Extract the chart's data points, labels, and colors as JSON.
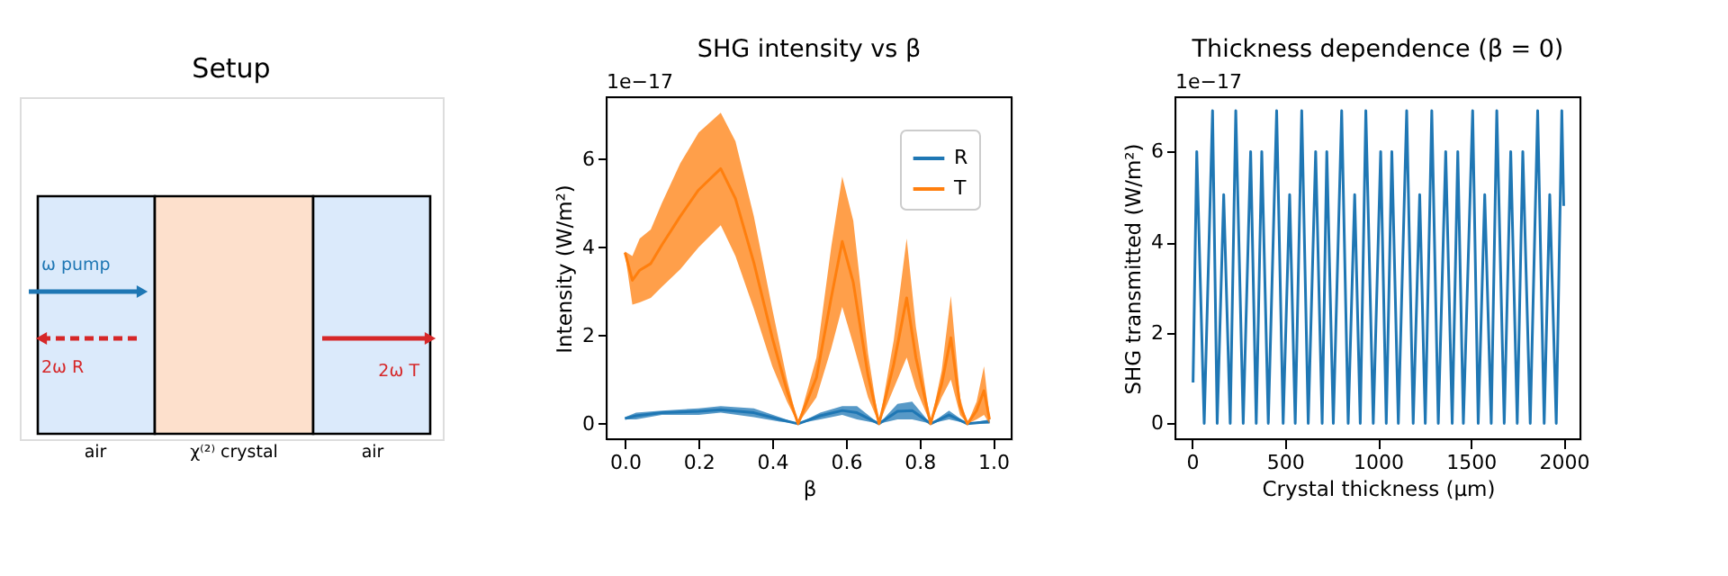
{
  "chart_data": [
    {
      "type": "other",
      "title": "Setup",
      "annotations": [
        "ω pump",
        "2ω R",
        "2ω T",
        "air",
        "χ⁽²⁾ crystal",
        "air"
      ]
    },
    {
      "type": "line",
      "title": "SHG intensity vs β",
      "xlabel": "β",
      "ylabel": "Intensity (W/m²)",
      "annotations": [
        "1e−17"
      ],
      "legend": "top right",
      "grid": false,
      "marker": "none",
      "line_style": "solid",
      "xlim": [
        -0.05,
        1.05
      ],
      "ylim": [
        -0.35,
        7.4
      ],
      "xticks": [
        {
          "value": 0,
          "label": "0.0"
        },
        {
          "value": 0.2,
          "label": "0.2"
        },
        {
          "value": 0.4,
          "label": "0.4"
        },
        {
          "value": 0.6,
          "label": "0.6"
        },
        {
          "value": 0.8,
          "label": "0.8"
        },
        {
          "value": 1,
          "label": "1.0"
        }
      ],
      "yticks": [
        0,
        2,
        4,
        6
      ],
      "series": [
        {
          "name": "R",
          "color": "#1f77b4",
          "x": [
            0,
            0.03,
            0.1,
            0.2,
            0.26,
            0.35,
            0.42,
            0.47,
            0.53,
            0.59,
            0.63,
            0.69,
            0.74,
            0.78,
            0.83,
            0.88,
            0.93,
            0.99
          ],
          "values": [
            0.12,
            0.18,
            0.25,
            0.28,
            0.32,
            0.25,
            0.1,
            0,
            0.18,
            0.3,
            0.25,
            0,
            0.28,
            0.3,
            0,
            0.2,
            0,
            0.05
          ],
          "lower": [
            0.1,
            0.1,
            0.2,
            0.2,
            0.25,
            0.15,
            0.05,
            0,
            0.1,
            0.2,
            0.1,
            0,
            0.1,
            0.1,
            0,
            0.1,
            0,
            0
          ],
          "upper": [
            0.15,
            0.25,
            0.3,
            0.35,
            0.4,
            0.35,
            0.15,
            0,
            0.25,
            0.4,
            0.4,
            0,
            0.45,
            0.5,
            0,
            0.3,
            0,
            0.1
          ]
        },
        {
          "name": "T",
          "color": "#ff7f0e",
          "x": [
            0,
            0.02,
            0.04,
            0.07,
            0.1,
            0.15,
            0.2,
            0.26,
            0.3,
            0.35,
            0.4,
            0.44,
            0.47,
            0.52,
            0.56,
            0.59,
            0.62,
            0.66,
            0.69,
            0.73,
            0.765,
            0.79,
            0.83,
            0.86,
            0.885,
            0.91,
            0.93,
            0.955,
            0.975,
            0.99
          ],
          "values": [
            3.88,
            3.25,
            3.48,
            3.63,
            4.05,
            4.7,
            5.3,
            5.78,
            5.1,
            3.65,
            1.95,
            0.75,
            0,
            1.05,
            2.85,
            4.13,
            3.2,
            1.1,
            0,
            1.35,
            2.85,
            1.5,
            0,
            0.9,
            1.95,
            0.4,
            0,
            0.3,
            0.75,
            0.1
          ],
          "lower": [
            3.85,
            2.7,
            2.75,
            2.85,
            3.1,
            3.5,
            4.0,
            4.5,
            3.8,
            2.6,
            1.3,
            0.5,
            0,
            0.6,
            1.7,
            2.65,
            1.8,
            0.6,
            0,
            0.8,
            1.5,
            0.8,
            0,
            0.6,
            1.0,
            0.2,
            0,
            0.1,
            0.2,
            0
          ],
          "upper": [
            3.9,
            3.8,
            4.2,
            4.4,
            5.0,
            5.9,
            6.6,
            7.05,
            6.4,
            4.7,
            2.6,
            1.0,
            0,
            1.5,
            4.0,
            5.6,
            4.6,
            1.6,
            0,
            1.9,
            4.2,
            2.2,
            0,
            1.2,
            2.9,
            0.6,
            0,
            0.5,
            1.3,
            0.2
          ]
        }
      ]
    },
    {
      "type": "line",
      "title": "Thickness dependence (β = 0)",
      "xlabel": "Crystal thickness (μm)",
      "ylabel": "SHG transmitted (W/m²)",
      "annotations": [
        "1e−17"
      ],
      "grid": false,
      "marker": "none",
      "line_style": "solid",
      "xlim": [
        -90,
        2090
      ],
      "ylim": [
        -0.35,
        7.2
      ],
      "xticks": [
        0,
        500,
        1000,
        1500,
        2000
      ],
      "yticks": [
        0,
        2,
        4,
        6
      ],
      "x": [
        5,
        25,
        65,
        110,
        135,
        170,
        205,
        235,
        275,
        315,
        345,
        375,
        410,
        455,
        490,
        525,
        555,
        590,
        625,
        665,
        700,
        725,
        760,
        805,
        840,
        875,
        905,
        935,
        975,
        1015,
        1045,
        1075,
        1110,
        1155,
        1190,
        1225,
        1255,
        1290,
        1325,
        1365,
        1400,
        1430,
        1460,
        1510,
        1540,
        1575,
        1610,
        1640,
        1680,
        1715,
        1750,
        1780,
        1820,
        1860,
        1895,
        1925,
        1960,
        1990,
        2000
      ],
      "series": [
        {
          "color": "#1f77b4",
          "values": [
            0.9,
            6,
            0,
            6.9,
            0,
            5.05,
            0,
            6.9,
            0,
            6,
            0,
            6,
            0,
            6.9,
            0,
            5.05,
            0,
            6.9,
            0,
            6,
            0,
            6,
            0,
            6.9,
            0,
            5.05,
            0,
            6.9,
            0,
            6,
            0,
            6,
            0,
            6.9,
            0,
            5.05,
            0,
            6.9,
            0,
            6,
            0,
            6,
            0,
            6.9,
            0,
            5.05,
            0,
            6.9,
            0,
            6,
            0,
            6,
            0,
            6.9,
            0,
            5.05,
            0,
            6.9,
            4.8
          ]
        }
      ]
    }
  ]
}
